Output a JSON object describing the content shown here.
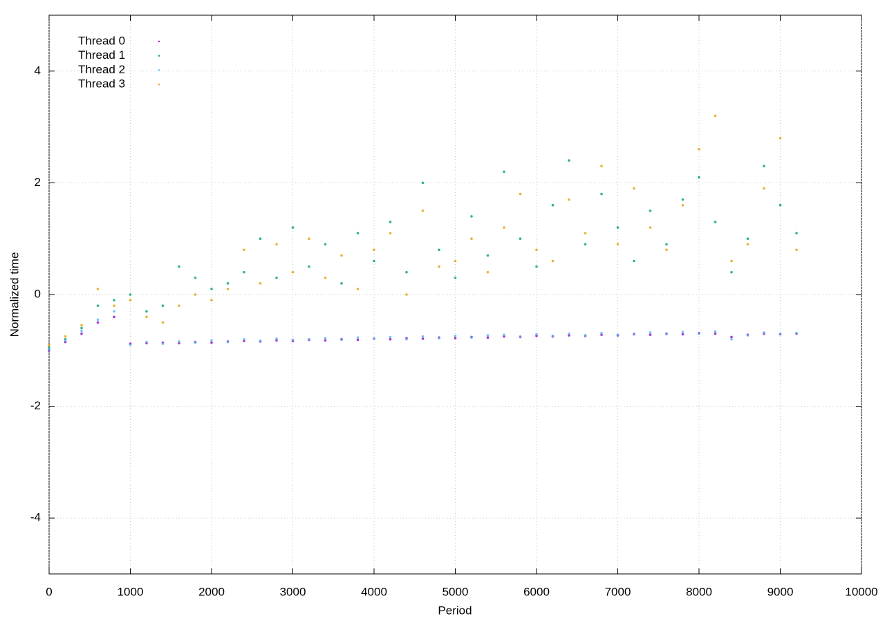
{
  "chart_data": {
    "type": "scatter",
    "x_label": "Period",
    "y_label": "Normalized time",
    "xlim": [
      0,
      10000
    ],
    "ylim": [
      -5,
      5
    ],
    "xticks": [
      0,
      1000,
      2000,
      3000,
      4000,
      5000,
      6000,
      7000,
      8000,
      9000,
      10000
    ],
    "yticks": [
      -4,
      -2,
      0,
      2,
      4
    ],
    "grid": true,
    "legend_position": "top-left",
    "x": [
      0,
      200,
      400,
      600,
      800,
      1000,
      1200,
      1400,
      1600,
      1800,
      2000,
      2200,
      2400,
      2600,
      2800,
      3000,
      3200,
      3400,
      3600,
      3800,
      4000,
      4200,
      4400,
      4600,
      4800,
      5000,
      5200,
      5400,
      5600,
      5800,
      6000,
      6200,
      6400,
      6600,
      6800,
      7000,
      7200,
      7400,
      7600,
      7800,
      8000,
      8200,
      8400,
      8600,
      8800,
      9000,
      9200
    ],
    "series": [
      {
        "name": "Thread 0",
        "color": "#9400d3",
        "values": [
          -1.0,
          -0.85,
          -0.7,
          -0.5,
          -0.4,
          -0.88,
          -0.87,
          -0.86,
          -0.87,
          -0.85,
          -0.86,
          -0.84,
          -0.83,
          -0.84,
          -0.82,
          -0.83,
          -0.81,
          -0.82,
          -0.8,
          -0.81,
          -0.79,
          -0.8,
          -0.78,
          -0.79,
          -0.77,
          -0.78,
          -0.76,
          -0.77,
          -0.75,
          -0.76,
          -0.74,
          -0.75,
          -0.73,
          -0.74,
          -0.72,
          -0.73,
          -0.71,
          -0.72,
          -0.7,
          -0.71,
          -0.69,
          -0.7,
          -0.76,
          -0.72,
          -0.7,
          -0.71,
          -0.7
        ]
      },
      {
        "name": "Thread 1",
        "color": "#009e73",
        "values": [
          -0.95,
          -0.8,
          -0.6,
          -0.2,
          -0.1,
          0.0,
          -0.3,
          -0.2,
          0.5,
          0.3,
          0.1,
          0.2,
          0.4,
          1.0,
          0.3,
          1.2,
          0.5,
          0.9,
          0.2,
          1.1,
          0.6,
          1.3,
          0.4,
          2.0,
          0.8,
          0.3,
          1.4,
          0.7,
          2.2,
          1.0,
          0.5,
          1.6,
          2.4,
          0.9,
          1.8,
          1.2,
          0.6,
          1.5,
          0.9,
          1.7,
          2.1,
          1.3,
          0.4,
          1.0,
          2.3,
          1.6,
          1.1
        ]
      },
      {
        "name": "Thread 2",
        "color": "#56b4e9",
        "values": [
          -0.98,
          -0.82,
          -0.65,
          -0.45,
          -0.3,
          -0.9,
          -0.85,
          -0.88,
          -0.84,
          -0.86,
          -0.82,
          -0.85,
          -0.8,
          -0.83,
          -0.79,
          -0.81,
          -0.8,
          -0.78,
          -0.81,
          -0.77,
          -0.79,
          -0.76,
          -0.8,
          -0.75,
          -0.78,
          -0.74,
          -0.77,
          -0.73,
          -0.72,
          -0.75,
          -0.71,
          -0.74,
          -0.7,
          -0.73,
          -0.69,
          -0.72,
          -0.7,
          -0.68,
          -0.71,
          -0.67,
          -0.7,
          -0.66,
          -0.8,
          -0.73,
          -0.68,
          -0.7,
          -0.69
        ]
      },
      {
        "name": "Thread 3",
        "color": "#e69f00",
        "values": [
          -0.9,
          -0.75,
          -0.55,
          0.1,
          -0.2,
          -0.1,
          -0.4,
          -0.5,
          -0.2,
          0.0,
          -0.1,
          0.1,
          0.8,
          0.2,
          0.9,
          0.4,
          1.0,
          0.3,
          0.7,
          0.1,
          0.8,
          1.1,
          0.0,
          1.5,
          0.5,
          0.6,
          1.0,
          0.4,
          1.2,
          1.8,
          0.8,
          0.6,
          1.7,
          1.1,
          2.3,
          0.9,
          1.9,
          1.2,
          0.8,
          1.6,
          2.6,
          3.2,
          0.6,
          0.9,
          1.9,
          2.8,
          0.8
        ]
      }
    ]
  }
}
